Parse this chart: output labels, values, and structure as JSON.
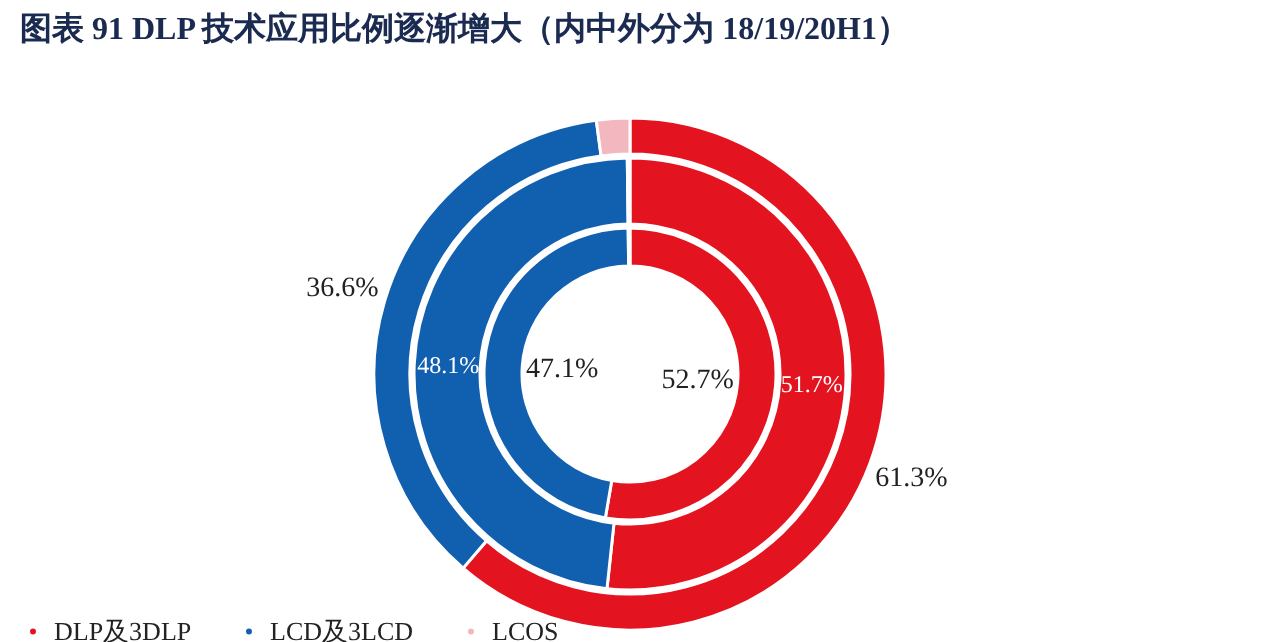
{
  "chart_data": {
    "type": "donut",
    "title": "图表 91   DLP 技术应用比例逐渐增大（内中外分为 18/19/20H1）",
    "categories": [
      "DLP及3DLP",
      "LCD及3LCD",
      "LCOS"
    ],
    "colors": [
      "#e3141f",
      "#1160b0",
      "#f3b8bf"
    ],
    "series": [
      {
        "values": [
          52.7,
          47.1,
          0.2
        ],
        "value_labels": [
          "52.7%",
          "47.1%",
          null
        ]
      },
      {
        "values": [
          51.7,
          48.1,
          0.2
        ],
        "value_labels": [
          "51.7%",
          "48.1%",
          null
        ]
      },
      {
        "values": [
          61.3,
          36.6,
          2.1
        ],
        "value_labels": [
          "61.3%",
          "36.6%",
          null
        ]
      }
    ],
    "legend": "bottom"
  }
}
